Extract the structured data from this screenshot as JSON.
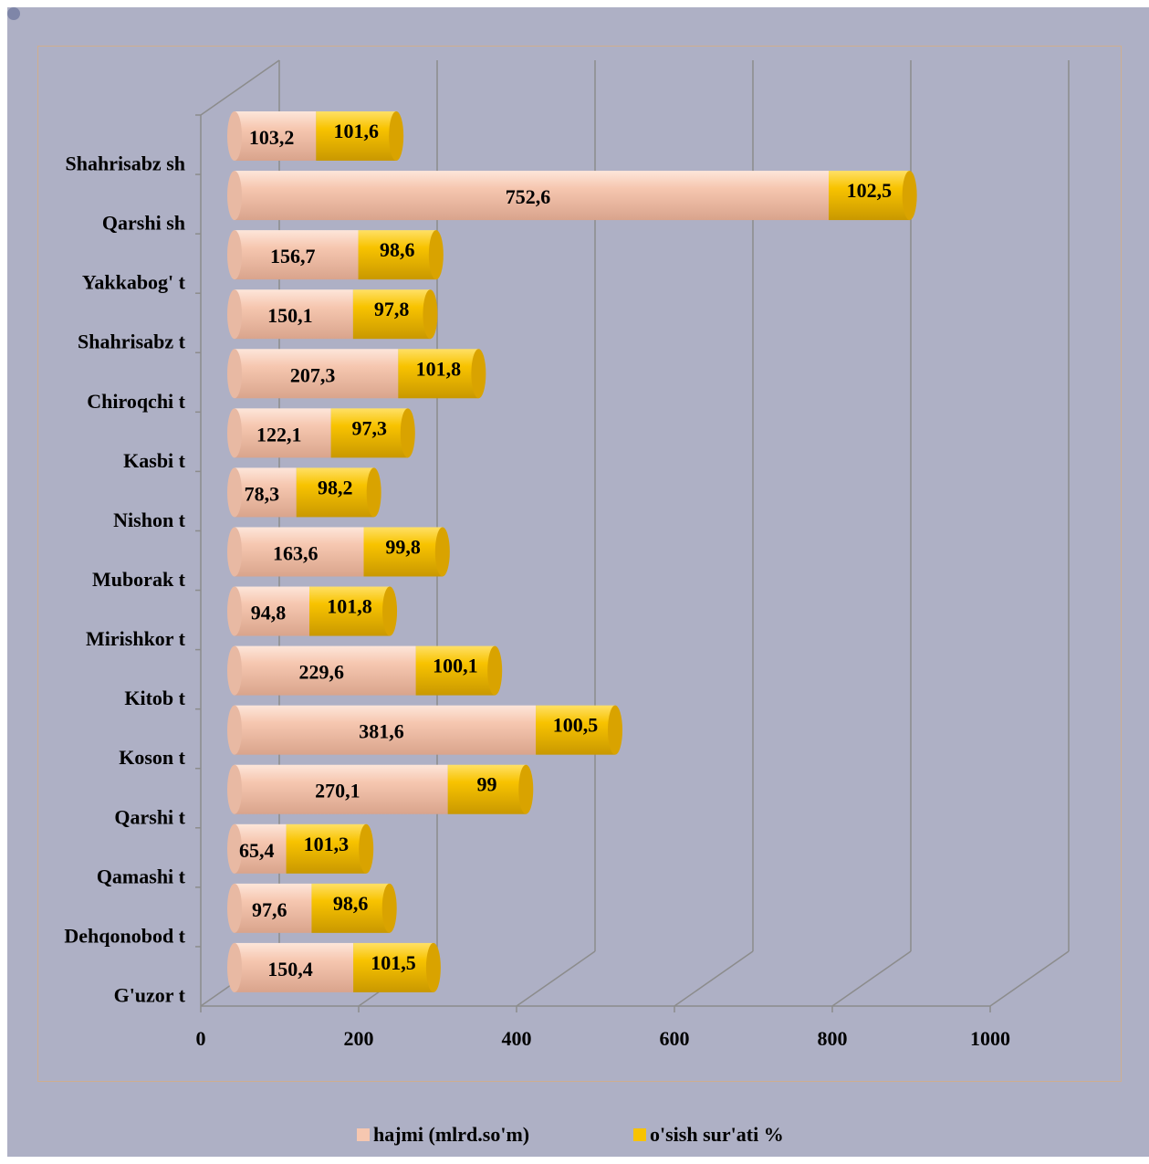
{
  "chart_data": {
    "type": "bar",
    "orientation": "horizontal",
    "stacked": true,
    "style": "3d-cylinder",
    "categories": [
      "Shahrisabz sh",
      "Qarshi sh",
      "Yakkabog' t",
      "Shahrisabz t",
      "Chiroqchi t",
      "Kasbi t",
      "Nishon t",
      "Muborak t",
      "Mirishkor t",
      "Kitob t",
      "Koson t",
      "Qarshi t",
      "Qamashi t",
      "Dehqonobod t",
      "G'uzor t"
    ],
    "series": [
      {
        "name": "hajmi (mlrd.so'm)",
        "color": "#f6c7b0",
        "values": [
          103.2,
          752.6,
          156.7,
          150.1,
          207.3,
          122.1,
          78.3,
          163.6,
          94.8,
          229.6,
          381.6,
          270.1,
          65.4,
          97.6,
          150.4
        ],
        "labels": [
          "103,2",
          "752,6",
          "156,7",
          "150,1",
          "207,3",
          "122,1",
          "78,3",
          "163,6",
          "94,8",
          "229,6",
          "381,6",
          "270,1",
          "65,4",
          "97,6",
          "150,4"
        ]
      },
      {
        "name": "o'sish sur'ati %",
        "color": "#f8c300",
        "values": [
          101.6,
          102.5,
          98.6,
          97.8,
          101.8,
          97.3,
          98.2,
          99.8,
          101.8,
          100.1,
          100.5,
          99,
          101.3,
          98.6,
          101.5
        ],
        "labels": [
          "101,6",
          "102,5",
          "98,6",
          "97,8",
          "101,8",
          "97,3",
          "98,2",
          "99,8",
          "101,8",
          "100,1",
          "100,5",
          "99",
          "101,3",
          "98,6",
          "101,5"
        ]
      }
    ],
    "xlim": [
      0,
      1000
    ],
    "xticks": [
      "0",
      "200",
      "400",
      "600",
      "800",
      "1000"
    ],
    "grid": true,
    "legend_position": "bottom",
    "background": "#aeb0c5",
    "axis_color": "#8c8c8c"
  }
}
